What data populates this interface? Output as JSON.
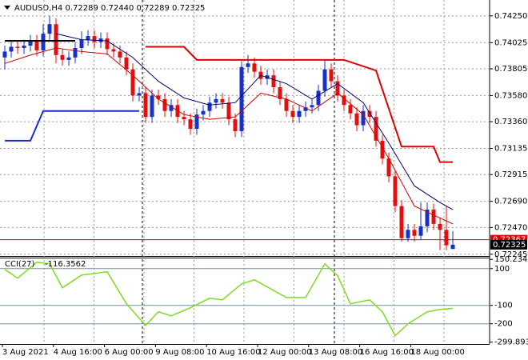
{
  "chart_data": [
    {
      "type": "candlestick",
      "title": "AUDUSD,H4  0.72289 0.72440 0.72289 0.72325",
      "ylim": [
        0.7223,
        0.7435
      ],
      "yticks": [
        {
          "value": 0.7425,
          "label": "0.74250"
        },
        {
          "value": 0.74025,
          "label": "0.74025"
        },
        {
          "value": 0.73805,
          "label": "0.73805"
        },
        {
          "value": 0.7358,
          "label": "0.73580"
        },
        {
          "value": 0.7336,
          "label": "0.73360"
        },
        {
          "value": 0.73135,
          "label": "0.73135"
        },
        {
          "value": 0.72915,
          "label": "0.72915"
        },
        {
          "value": 0.7269,
          "label": "0.72690"
        },
        {
          "value": 0.7247,
          "label": "0.72470"
        },
        {
          "value": 0.72245,
          "label": "0.72245"
        }
      ],
      "categories": [
        "3 Aug 2021",
        "4 Aug 16:00",
        "6 Aug 00:00",
        "9 Aug 08:00",
        "10 Aug 16:00",
        "12 Aug 00:00",
        "13 Aug 08:00",
        "16 Aug 16:00",
        "18 Aug 00:00"
      ],
      "grid": true,
      "up_color": "#1a2fc4",
      "down_color": "#e01010",
      "open": [
        0.739,
        0.7395,
        0.7399,
        0.7398,
        0.74,
        0.7404,
        0.7396,
        0.741,
        0.7418,
        0.7392,
        0.7388,
        0.739,
        0.7398,
        0.7405,
        0.7408,
        0.7403,
        0.7406,
        0.7397,
        0.7395,
        0.739,
        0.738,
        0.7358,
        0.736,
        0.734,
        0.7358,
        0.7355,
        0.7345,
        0.735,
        0.734,
        0.7338,
        0.733,
        0.7342,
        0.7345,
        0.7352,
        0.7355,
        0.7352,
        0.7338,
        0.7328,
        0.7382,
        0.7385,
        0.7378,
        0.7372,
        0.7375,
        0.7365,
        0.7355,
        0.7345,
        0.734,
        0.7345,
        0.7348,
        0.735,
        0.7362,
        0.738,
        0.737,
        0.7358,
        0.735,
        0.7343,
        0.7333,
        0.7345,
        0.734,
        0.732,
        0.7305,
        0.729,
        0.7265,
        0.7238,
        0.7245,
        0.724,
        0.7248,
        0.7262,
        0.725,
        0.7245,
        0.72289
      ],
      "high": [
        0.74,
        0.7404,
        0.7404,
        0.7405,
        0.7409,
        0.7409,
        0.7418,
        0.7425,
        0.7423,
        0.7397,
        0.7395,
        0.7403,
        0.7412,
        0.7413,
        0.7413,
        0.7411,
        0.7411,
        0.7402,
        0.74,
        0.7395,
        0.7385,
        0.7365,
        0.7365,
        0.7363,
        0.7363,
        0.736,
        0.7355,
        0.7355,
        0.7345,
        0.7343,
        0.7347,
        0.735,
        0.7357,
        0.736,
        0.736,
        0.7357,
        0.7343,
        0.7387,
        0.7392,
        0.739,
        0.7383,
        0.738,
        0.738,
        0.737,
        0.736,
        0.735,
        0.735,
        0.7353,
        0.7355,
        0.7367,
        0.7388,
        0.7385,
        0.7375,
        0.7363,
        0.7355,
        0.7348,
        0.735,
        0.735,
        0.7345,
        0.7325,
        0.731,
        0.7295,
        0.727,
        0.725,
        0.725,
        0.7268,
        0.7268,
        0.7267,
        0.7255,
        0.7265,
        0.7244
      ],
      "low": [
        0.738,
        0.739,
        0.7393,
        0.7393,
        0.7395,
        0.7391,
        0.7391,
        0.7405,
        0.7385,
        0.7383,
        0.7383,
        0.7385,
        0.7393,
        0.74,
        0.7398,
        0.7398,
        0.7392,
        0.739,
        0.7385,
        0.7375,
        0.7353,
        0.7353,
        0.7335,
        0.7335,
        0.735,
        0.734,
        0.734,
        0.7335,
        0.7333,
        0.7325,
        0.7325,
        0.7337,
        0.734,
        0.7347,
        0.7347,
        0.7333,
        0.7323,
        0.7323,
        0.7377,
        0.7373,
        0.7367,
        0.7367,
        0.736,
        0.735,
        0.734,
        0.7335,
        0.7335,
        0.734,
        0.7343,
        0.7345,
        0.7357,
        0.7365,
        0.7353,
        0.7345,
        0.7338,
        0.7328,
        0.7328,
        0.7335,
        0.7315,
        0.73,
        0.7285,
        0.726,
        0.7235,
        0.7235,
        0.7235,
        0.7237,
        0.7243,
        0.7245,
        0.7228,
        0.7228,
        0.72289
      ],
      "close": [
        0.7395,
        0.7399,
        0.7398,
        0.74,
        0.7404,
        0.7396,
        0.741,
        0.7418,
        0.7392,
        0.7388,
        0.739,
        0.7398,
        0.7405,
        0.7408,
        0.7403,
        0.7406,
        0.7397,
        0.7395,
        0.739,
        0.738,
        0.7358,
        0.736,
        0.734,
        0.7358,
        0.7355,
        0.7345,
        0.735,
        0.734,
        0.7338,
        0.733,
        0.7342,
        0.7345,
        0.7352,
        0.7355,
        0.7352,
        0.7338,
        0.7328,
        0.7382,
        0.7385,
        0.7378,
        0.7372,
        0.7375,
        0.7365,
        0.7355,
        0.7345,
        0.734,
        0.7345,
        0.7348,
        0.735,
        0.7362,
        0.738,
        0.737,
        0.7358,
        0.735,
        0.7343,
        0.7333,
        0.7345,
        0.734,
        0.732,
        0.7305,
        0.729,
        0.7265,
        0.7238,
        0.7245,
        0.724,
        0.7248,
        0.7262,
        0.725,
        0.7245,
        0.7232,
        0.72325
      ],
      "series": [
        {
          "color": "#00007a",
          "width": 1,
          "x": [
            8,
            12,
            16,
            20,
            24,
            28,
            32,
            36,
            40,
            44,
            48,
            52,
            56,
            60,
            64,
            68,
            70
          ],
          "values": [
            0.741,
            0.7405,
            0.7404,
            0.739,
            0.737,
            0.7356,
            0.735,
            0.7352,
            0.7375,
            0.7368,
            0.7355,
            0.7368,
            0.7352,
            0.7318,
            0.7282,
            0.7268,
            0.7262
          ]
        },
        {
          "color": "#d00000",
          "width": 1,
          "x": [
            0,
            4,
            8,
            12,
            16,
            20,
            24,
            28,
            32,
            36,
            40,
            44,
            48,
            52,
            56,
            60,
            64,
            68,
            70
          ],
          "values": [
            0.7385,
            0.7392,
            0.7398,
            0.7395,
            0.7393,
            0.7375,
            0.7355,
            0.7342,
            0.7338,
            0.734,
            0.736,
            0.7355,
            0.7345,
            0.736,
            0.7342,
            0.7305,
            0.7265,
            0.7255,
            0.725
          ]
        },
        {
          "color": "#e00000",
          "width": 2,
          "x": [
            22,
            28,
            30,
            53,
            58,
            62,
            67,
            68,
            70
          ],
          "values": [
            0.7399,
            0.7399,
            0.7388,
            0.7388,
            0.7379,
            0.7315,
            0.7315,
            0.7302,
            0.7302
          ]
        },
        {
          "color": "#1a2fc4",
          "width": 2,
          "x": [
            0,
            4,
            6,
            21
          ],
          "values": [
            0.732,
            0.732,
            0.7345,
            0.7345
          ]
        },
        {
          "color": "#000000",
          "width": 2,
          "x": [
            0,
            11
          ],
          "values": [
            0.7404,
            0.7404
          ]
        }
      ],
      "price_lines": [
        {
          "value": 0.72367,
          "color": "#e00000"
        },
        {
          "value": 0.72325,
          "color": "#000000"
        }
      ]
    },
    {
      "type": "line",
      "title": "CCI(27)",
      "ylim": [
        -310,
        160
      ],
      "yticks": [
        150.234,
        100,
        -100,
        -200,
        -299.8938
      ],
      "levels": [
        100,
        -100,
        -200
      ],
      "series": [
        {
          "color": "#7ddc1f",
          "x": [
            0,
            2,
            5,
            7,
            9,
            12,
            16,
            19,
            22,
            24,
            26,
            29,
            32,
            34,
            37,
            39,
            44,
            47,
            50,
            52,
            54,
            57,
            59,
            61,
            63,
            66,
            68,
            70
          ],
          "values": [
            96,
            48,
            135,
            126,
            -4,
            65,
            83,
            -91,
            -209,
            -135,
            -157,
            -113,
            -61,
            -70,
            17,
            39,
            -57,
            -57,
            126,
            61,
            -91,
            -70,
            -135,
            -265,
            -200,
            -135,
            -122,
            -116.3562
          ]
        }
      ]
    }
  ]
}
